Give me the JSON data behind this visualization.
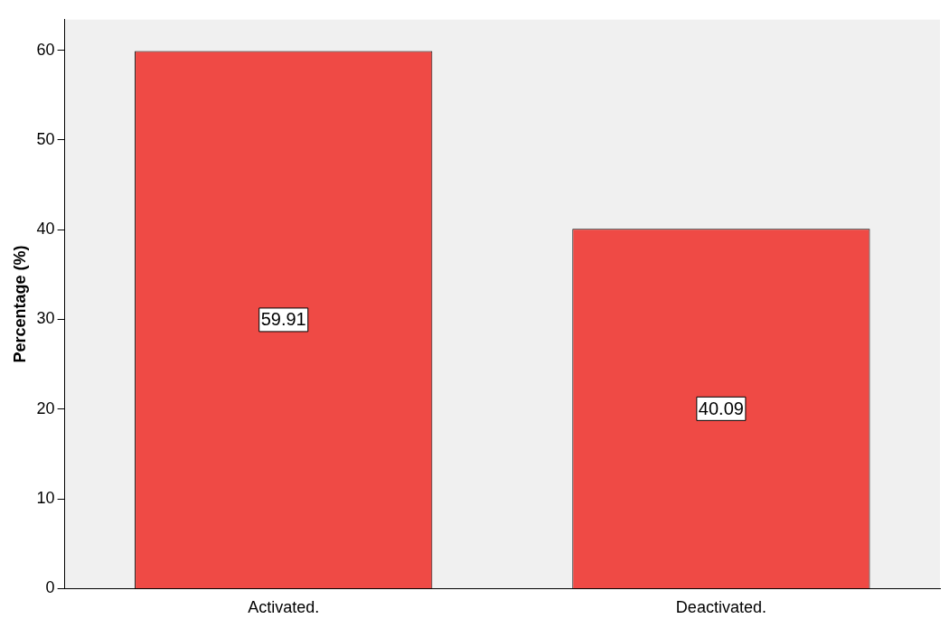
{
  "chart_data": {
    "type": "bar",
    "ylabel": "Percentage (%)",
    "categories": [
      "Activated.",
      "Deactivated."
    ],
    "values": [
      59.91,
      40.09
    ],
    "color": "#ef4a45",
    "ylim": [
      0,
      63.4
    ],
    "yticks": [
      0,
      10,
      20,
      30,
      40,
      50,
      60
    ],
    "grid": false,
    "legend": false,
    "data_labels": true
  }
}
